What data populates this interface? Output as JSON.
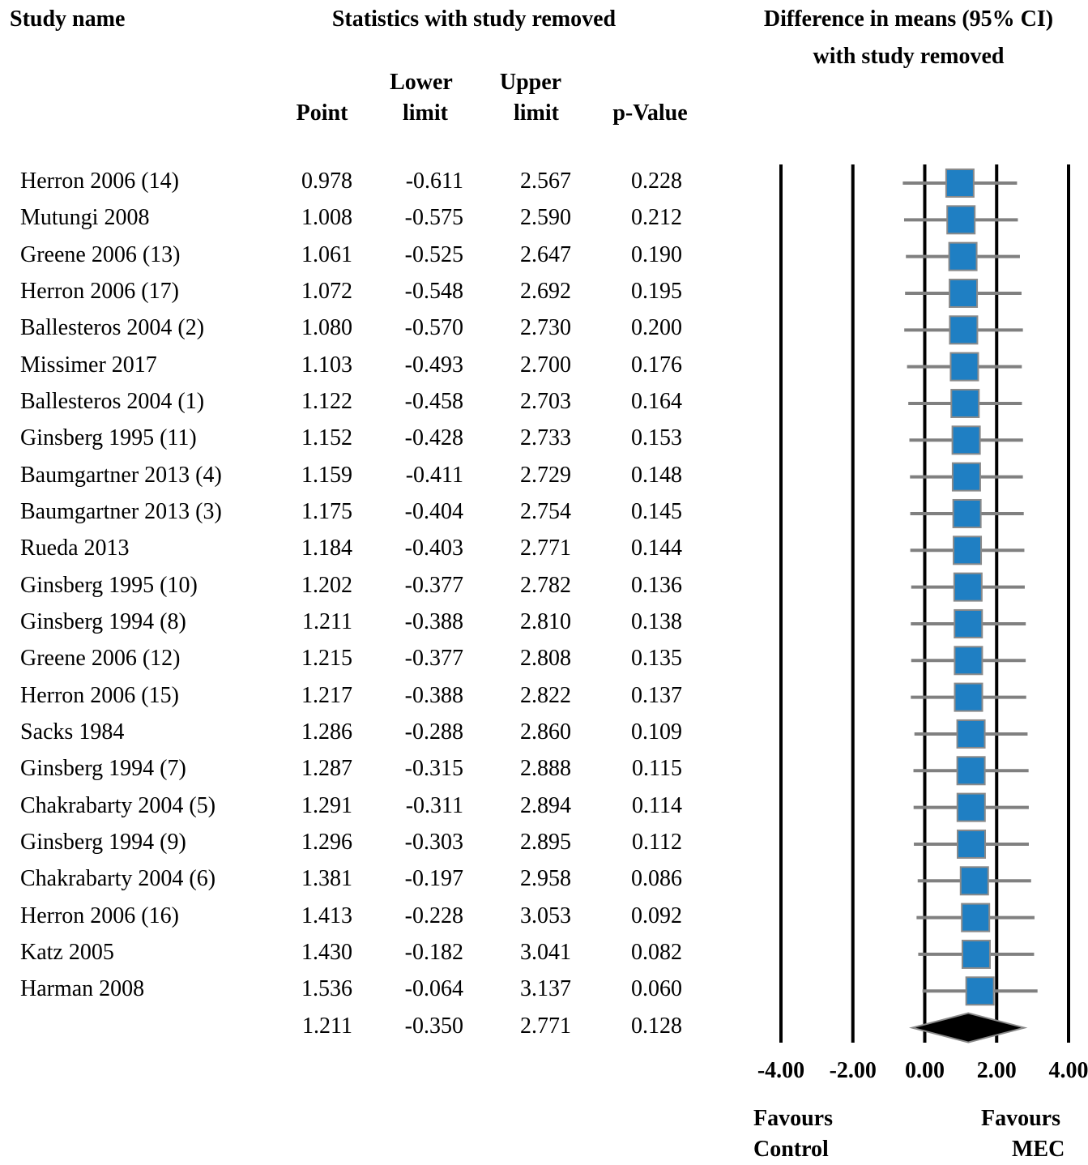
{
  "headers": {
    "study_name": "Study name",
    "stats_title": "Statistics with study removed",
    "plot_title_line1": "Difference in means (95% CI)",
    "plot_title_line2": "with study removed",
    "point": "Point",
    "lower_line1": "Lower",
    "lower_line2": "limit",
    "upper_line1": "Upper",
    "upper_line2": "limit",
    "pvalue": "p-Value"
  },
  "favours": {
    "left_line1": "Favours",
    "left_line2": "Control",
    "right_line1": "Favours",
    "right_line2": "MEC"
  },
  "rows": [
    {
      "name": "Herron 2006 (14)",
      "point": "0.978",
      "lower": "-0.611",
      "upper": "2.567",
      "p": "0.228"
    },
    {
      "name": "Mutungi 2008",
      "point": "1.008",
      "lower": "-0.575",
      "upper": "2.590",
      "p": "0.212"
    },
    {
      "name": "Greene 2006 (13)",
      "point": "1.061",
      "lower": "-0.525",
      "upper": "2.647",
      "p": "0.190"
    },
    {
      "name": "Herron 2006 (17)",
      "point": "1.072",
      "lower": "-0.548",
      "upper": "2.692",
      "p": "0.195"
    },
    {
      "name": "Ballesteros 2004 (2)",
      "point": "1.080",
      "lower": "-0.570",
      "upper": "2.730",
      "p": "0.200"
    },
    {
      "name": "Missimer 2017",
      "point": "1.103",
      "lower": "-0.493",
      "upper": "2.700",
      "p": "0.176"
    },
    {
      "name": "Ballesteros 2004 (1)",
      "point": "1.122",
      "lower": "-0.458",
      "upper": "2.703",
      "p": "0.164"
    },
    {
      "name": "Ginsberg 1995 (11)",
      "point": "1.152",
      "lower": "-0.428",
      "upper": "2.733",
      "p": "0.153"
    },
    {
      "name": "Baumgartner 2013 (4)",
      "point": "1.159",
      "lower": "-0.411",
      "upper": "2.729",
      "p": "0.148"
    },
    {
      "name": "Baumgartner 2013 (3)",
      "point": "1.175",
      "lower": "-0.404",
      "upper": "2.754",
      "p": "0.145"
    },
    {
      "name": "Rueda 2013",
      "point": "1.184",
      "lower": "-0.403",
      "upper": "2.771",
      "p": "0.144"
    },
    {
      "name": "Ginsberg 1995 (10)",
      "point": "1.202",
      "lower": "-0.377",
      "upper": "2.782",
      "p": "0.136"
    },
    {
      "name": "Ginsberg 1994 (8)",
      "point": "1.211",
      "lower": "-0.388",
      "upper": "2.810",
      "p": "0.138"
    },
    {
      "name": "Greene 2006 (12)",
      "point": "1.215",
      "lower": "-0.377",
      "upper": "2.808",
      "p": "0.135"
    },
    {
      "name": "Herron 2006 (15)",
      "point": "1.217",
      "lower": "-0.388",
      "upper": "2.822",
      "p": "0.137"
    },
    {
      "name": "Sacks 1984",
      "point": "1.286",
      "lower": "-0.288",
      "upper": "2.860",
      "p": "0.109"
    },
    {
      "name": "Ginsberg 1994 (7)",
      "point": "1.287",
      "lower": "-0.315",
      "upper": "2.888",
      "p": "0.115"
    },
    {
      "name": "Chakrabarty 2004 (5)",
      "point": "1.291",
      "lower": "-0.311",
      "upper": "2.894",
      "p": "0.114"
    },
    {
      "name": "Ginsberg 1994 (9)",
      "point": "1.296",
      "lower": "-0.303",
      "upper": "2.895",
      "p": "0.112"
    },
    {
      "name": "Chakrabarty 2004 (6)",
      "point": "1.381",
      "lower": "-0.197",
      "upper": "2.958",
      "p": "0.086"
    },
    {
      "name": "Herron 2006 (16)",
      "point": "1.413",
      "lower": "-0.228",
      "upper": "3.053",
      "p": "0.092"
    },
    {
      "name": "Katz 2005",
      "point": "1.430",
      "lower": "-0.182",
      "upper": "3.041",
      "p": "0.082"
    },
    {
      "name": "Harman 2008",
      "point": "1.536",
      "lower": "-0.064",
      "upper": "3.137",
      "p": "0.060"
    }
  ],
  "summary": {
    "point": "1.211",
    "lower": "-0.350",
    "upper": "2.771",
    "p": "0.128"
  },
  "colors": {
    "marker_fill": "#1f7fc3",
    "marker_border": "#8a8a8a",
    "ci_line": "#808080",
    "diamond": "#000000",
    "axis_line": "#000000"
  },
  "chart_data": {
    "type": "forest",
    "title": "Difference in means (95% CI) with study removed",
    "xlim": [
      -4,
      4
    ],
    "ticks": [
      -4,
      -2,
      0,
      2,
      4
    ],
    "tick_labels": [
      "-4.00",
      "-2.00",
      "0.00",
      "2.00",
      "4.00"
    ],
    "vertical_lines_at": [
      -4,
      -2,
      0,
      2,
      4
    ],
    "series": [
      {
        "name": "Herron 2006 (14)",
        "point": 0.978,
        "lower": -0.611,
        "upper": 2.567
      },
      {
        "name": "Mutungi 2008",
        "point": 1.008,
        "lower": -0.575,
        "upper": 2.59
      },
      {
        "name": "Greene 2006 (13)",
        "point": 1.061,
        "lower": -0.525,
        "upper": 2.647
      },
      {
        "name": "Herron 2006 (17)",
        "point": 1.072,
        "lower": -0.548,
        "upper": 2.692
      },
      {
        "name": "Ballesteros 2004 (2)",
        "point": 1.08,
        "lower": -0.57,
        "upper": 2.73
      },
      {
        "name": "Missimer 2017",
        "point": 1.103,
        "lower": -0.493,
        "upper": 2.7
      },
      {
        "name": "Ballesteros 2004 (1)",
        "point": 1.122,
        "lower": -0.458,
        "upper": 2.703
      },
      {
        "name": "Ginsberg 1995 (11)",
        "point": 1.152,
        "lower": -0.428,
        "upper": 2.733
      },
      {
        "name": "Baumgartner 2013 (4)",
        "point": 1.159,
        "lower": -0.411,
        "upper": 2.729
      },
      {
        "name": "Baumgartner 2013 (3)",
        "point": 1.175,
        "lower": -0.404,
        "upper": 2.754
      },
      {
        "name": "Rueda 2013",
        "point": 1.184,
        "lower": -0.403,
        "upper": 2.771
      },
      {
        "name": "Ginsberg 1995 (10)",
        "point": 1.202,
        "lower": -0.377,
        "upper": 2.782
      },
      {
        "name": "Ginsberg 1994 (8)",
        "point": 1.211,
        "lower": -0.388,
        "upper": 2.81
      },
      {
        "name": "Greene 2006 (12)",
        "point": 1.215,
        "lower": -0.377,
        "upper": 2.808
      },
      {
        "name": "Herron 2006 (15)",
        "point": 1.217,
        "lower": -0.388,
        "upper": 2.822
      },
      {
        "name": "Sacks 1984",
        "point": 1.286,
        "lower": -0.288,
        "upper": 2.86
      },
      {
        "name": "Ginsberg 1994 (7)",
        "point": 1.287,
        "lower": -0.315,
        "upper": 2.888
      },
      {
        "name": "Chakrabarty 2004 (5)",
        "point": 1.291,
        "lower": -0.311,
        "upper": 2.894
      },
      {
        "name": "Ginsberg 1994 (9)",
        "point": 1.296,
        "lower": -0.303,
        "upper": 2.895
      },
      {
        "name": "Chakrabarty 2004 (6)",
        "point": 1.381,
        "lower": -0.197,
        "upper": 2.958
      },
      {
        "name": "Herron 2006 (16)",
        "point": 1.413,
        "lower": -0.228,
        "upper": 3.053
      },
      {
        "name": "Katz 2005",
        "point": 1.43,
        "lower": -0.182,
        "upper": 3.041
      },
      {
        "name": "Harman 2008",
        "point": 1.536,
        "lower": -0.064,
        "upper": 3.137
      }
    ],
    "summary": {
      "point": 1.211,
      "lower": -0.35,
      "upper": 2.771
    }
  }
}
